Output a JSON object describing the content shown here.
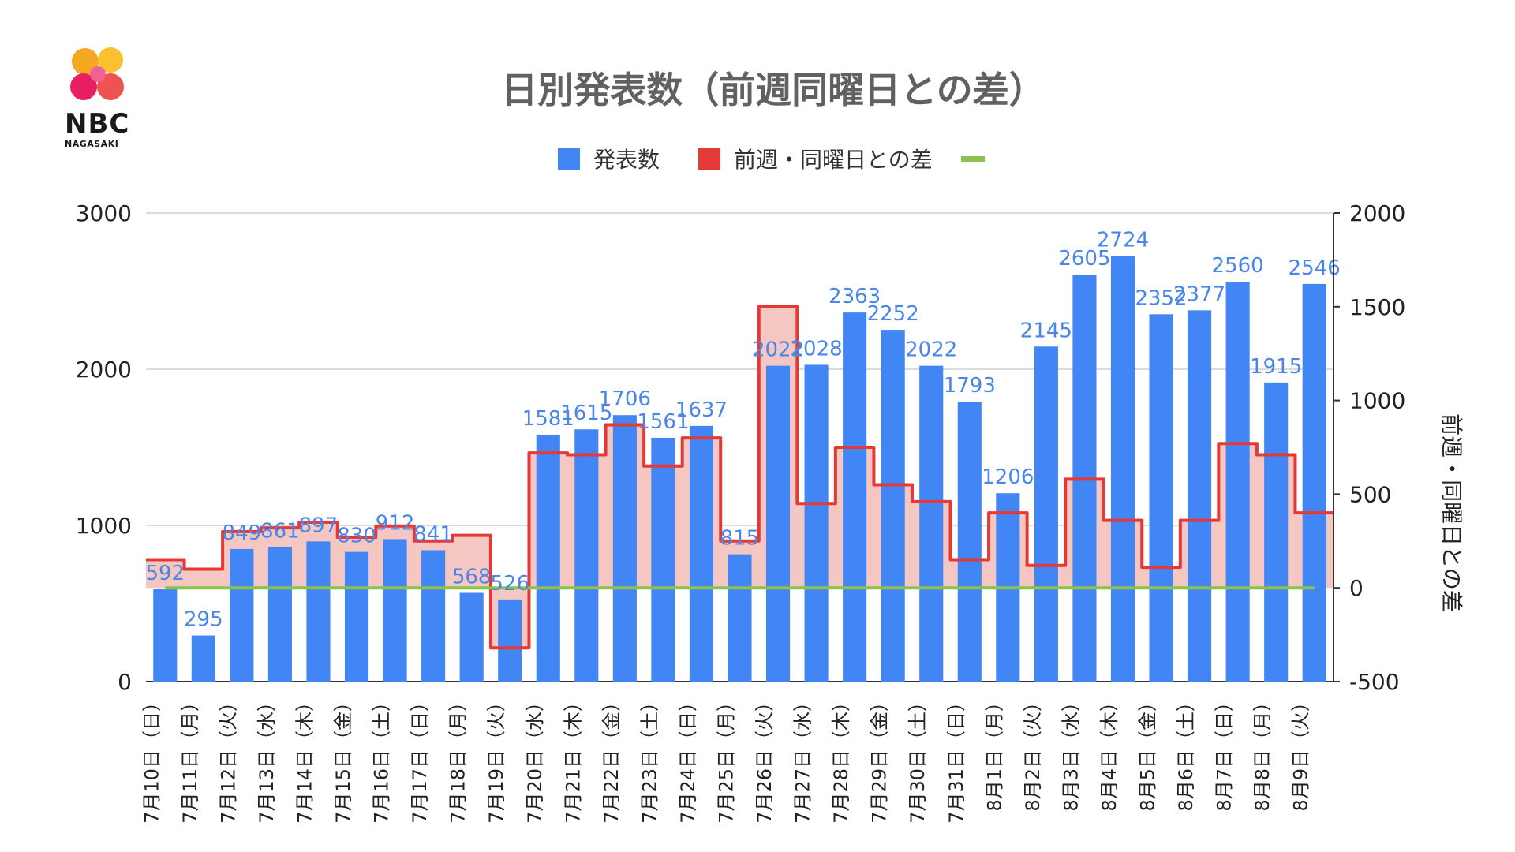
{
  "brand": {
    "name": "NBC",
    "sub": "NAGASAKI"
  },
  "chart_data": {
    "type": "bar+step-area",
    "title": "日別発表数（前週同曜日との差）",
    "legend": [
      "発表数",
      "前週・同曜日との差",
      ""
    ],
    "ylabel_right": "前週・同曜日との差",
    "ylim_left": [
      0,
      3000
    ],
    "yticks_left": [
      "0",
      "1000",
      "2000",
      "3000"
    ],
    "ylim_right": [
      -500,
      2000
    ],
    "yticks_right": [
      "-500",
      "0",
      "500",
      "1000",
      "1500",
      "2000"
    ],
    "categories": [
      "7月10日（日）",
      "7月11日（月）",
      "7月12日（火）",
      "7月13日（水）",
      "7月14日（木）",
      "7月15日（金）",
      "7月16日（土）",
      "7月17日（日）",
      "7月18日（月）",
      "7月19日（火）",
      "7月20日（水）",
      "7月21日（木）",
      "7月22日（金）",
      "7月23日（土）",
      "7月24日（日）",
      "7月25日（月）",
      "7月26日（火）",
      "7月27日（水）",
      "7月28日（木）",
      "7月29日（金）",
      "7月30日（土）",
      "7月31日（日）",
      "8月1日（月）",
      "8月2日（火）",
      "8月3日（水）",
      "8月4日（木）",
      "8月5日（金）",
      "8月6日（土）",
      "8月7日（日）",
      "8月8日（月）",
      "8月9日（火）"
    ],
    "series": [
      {
        "name": "発表数",
        "color": "#4285f4",
        "values": [
          592,
          295,
          849,
          861,
          897,
          830,
          912,
          841,
          568,
          526,
          1581,
          1615,
          1706,
          1561,
          1637,
          815,
          2022,
          2028,
          2363,
          2252,
          2022,
          1793,
          1206,
          2145,
          2605,
          2724,
          2352,
          2377,
          2560,
          1915,
          2546
        ]
      },
      {
        "name": "前週・同曜日との差",
        "color": "#e53935",
        "fill": "#f4c7c3",
        "values": [
          150,
          100,
          300,
          320,
          350,
          270,
          330,
          250,
          280,
          -320,
          720,
          710,
          870,
          650,
          800,
          250,
          1500,
          450,
          750,
          550,
          460,
          150,
          400,
          120,
          580,
          360,
          110,
          360,
          770,
          710,
          400
        ]
      },
      {
        "name": "",
        "color": "#8bc34a",
        "values": [
          0,
          0,
          0,
          0,
          0,
          0,
          0,
          0,
          0,
          0,
          0,
          0,
          0,
          0,
          0,
          0,
          0,
          0,
          0,
          0,
          0,
          0,
          0,
          0,
          0,
          0,
          0,
          0,
          0,
          0,
          0
        ]
      }
    ],
    "data_labels": [
      "592",
      "295",
      "849",
      "861",
      "897",
      "830",
      "912",
      "841",
      "568",
      "526",
      "1581",
      "1615",
      "1706",
      "1561",
      "1637",
      "815",
      "2022",
      "2028",
      "2363",
      "2252",
      "2022",
      "1793",
      "1206",
      "2145",
      "2605",
      "2724",
      "2352",
      "2377",
      "2560",
      "1915",
      "2546"
    ]
  }
}
